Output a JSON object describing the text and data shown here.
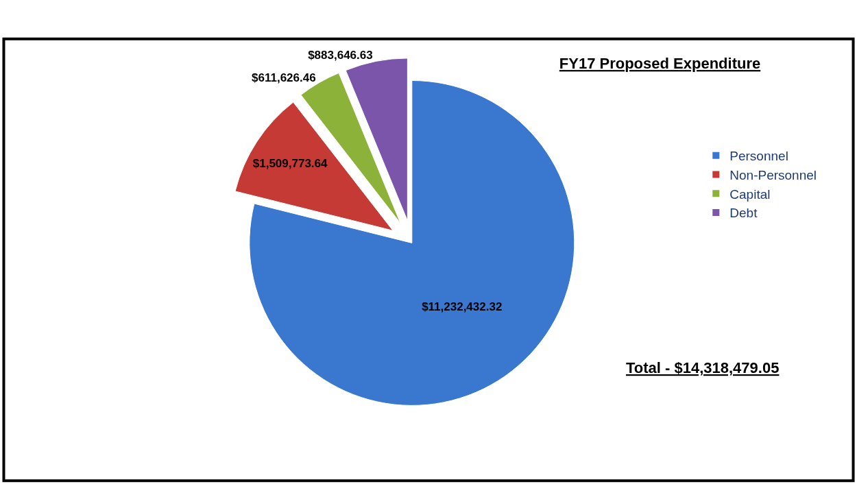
{
  "chart_data": {
    "type": "pie",
    "title": "FY17 Proposed Expenditure",
    "categories": [
      "Personnel",
      "Non-Personnel",
      "Capital",
      "Debt"
    ],
    "values": [
      11232432.32,
      1509773.64,
      611626.46,
      883646.63
    ],
    "value_labels": [
      "$11,232,432.32",
      "$1,509,773.64",
      "$611,626.46",
      "$883,646.63"
    ],
    "colors": [
      "#3a78d0",
      "#c63a35",
      "#8cb23a",
      "#7b55aa"
    ],
    "legend": "right",
    "annotations": [
      "Total - $14,318,479.05"
    ]
  }
}
